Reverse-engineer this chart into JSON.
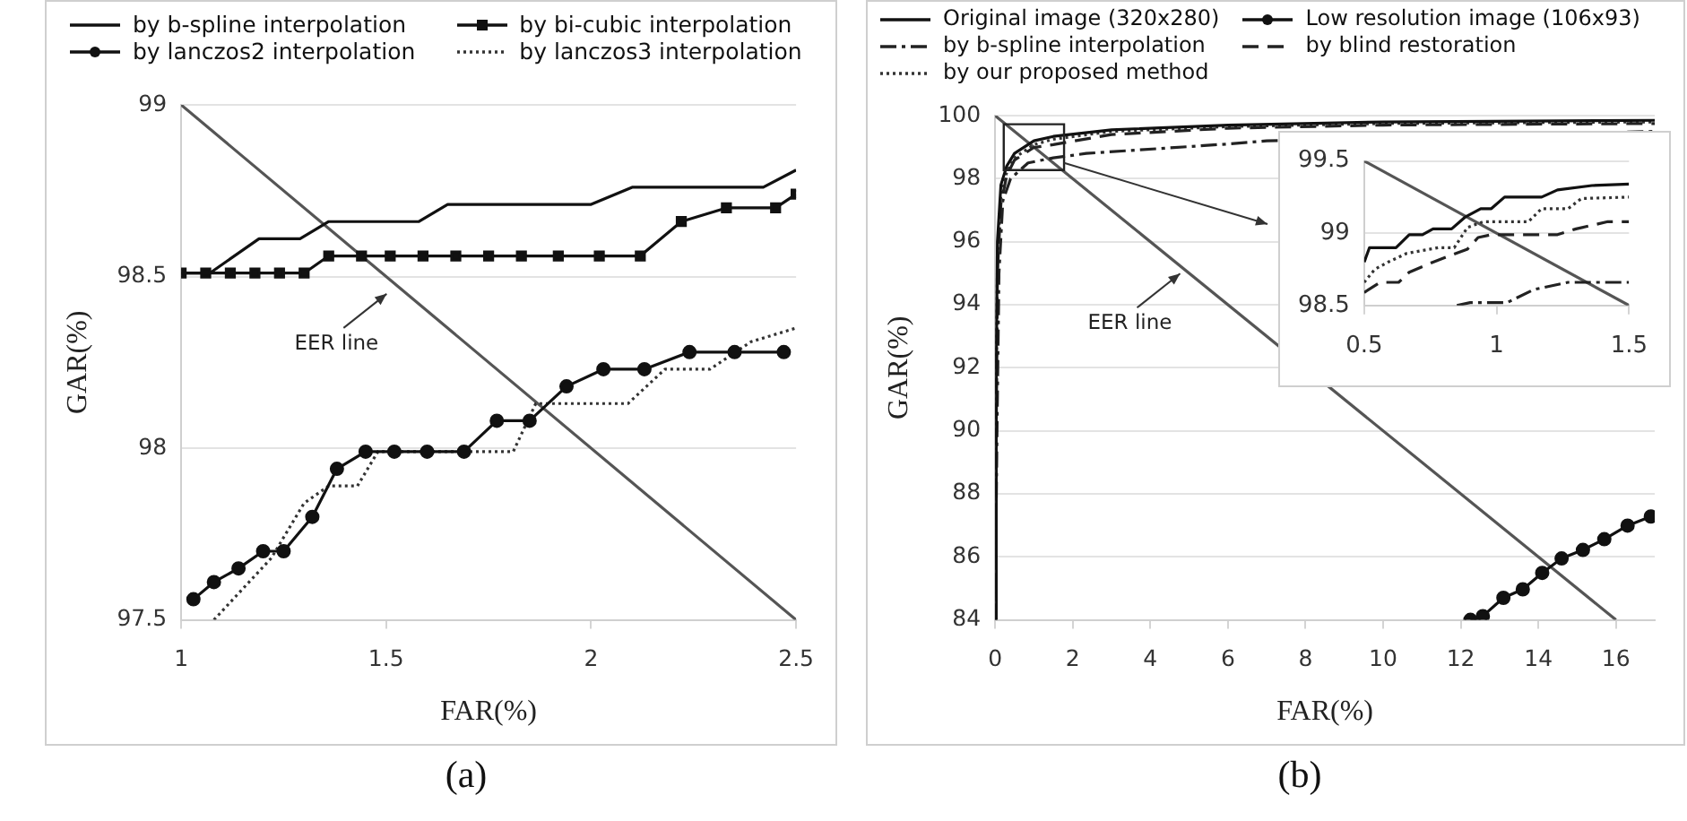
{
  "chart_data": [
    {
      "type": "line",
      "xlabel": "FAR(%)",
      "ylabel": "GAR(%)",
      "xlim": [
        1,
        2.5
      ],
      "xticks": [
        1,
        1.5,
        2,
        2.5
      ],
      "ylim": [
        97.5,
        99
      ],
      "yticks": [
        97.5,
        98,
        98.5,
        99
      ],
      "grid": "y",
      "legend": "top",
      "annotations": [
        {
          "text": "EER line",
          "x": 1.51,
          "y": 98.46
        },
        "(a)"
      ],
      "series": [
        {
          "name": "by b-spline interpolation",
          "color": "#111111",
          "marker": "none",
          "line_style": "solid",
          "x": [
            1,
            1.07,
            1.19,
            1.29,
            1.36,
            1.58,
            1.65,
            2.0,
            2.1,
            2.42,
            2.5
          ],
          "values": [
            98.51,
            98.51,
            98.61,
            98.61,
            98.66,
            98.66,
            98.71,
            98.71,
            98.76,
            98.76,
            98.81
          ]
        },
        {
          "name": "by bi-cubic interpolation",
          "color": "#111111",
          "marker": "square",
          "line_style": "solid",
          "x": [
            1,
            1.06,
            1.12,
            1.18,
            1.24,
            1.3,
            1.36,
            1.44,
            1.51,
            1.59,
            1.67,
            1.75,
            1.83,
            1.92,
            2.02,
            2.12,
            2.22,
            2.33,
            2.45,
            2.5
          ],
          "values": [
            98.51,
            98.51,
            98.51,
            98.51,
            98.51,
            98.51,
            98.56,
            98.56,
            98.56,
            98.56,
            98.56,
            98.56,
            98.56,
            98.56,
            98.56,
            98.56,
            98.66,
            98.7,
            98.7,
            98.74
          ]
        },
        {
          "name": "by lanczos2 interpolation",
          "color": "#111111",
          "marker": "circle",
          "line_style": "solid",
          "x": [
            1.03,
            1.08,
            1.14,
            1.2,
            1.25,
            1.32,
            1.38,
            1.45,
            1.52,
            1.6,
            1.69,
            1.77,
            1.85,
            1.94,
            2.03,
            2.13,
            2.24,
            2.35,
            2.47
          ],
          "values": [
            97.56,
            97.61,
            97.65,
            97.7,
            97.7,
            97.8,
            97.94,
            97.99,
            97.99,
            97.99,
            97.99,
            98.08,
            98.08,
            98.18,
            98.23,
            98.23,
            98.28,
            98.28,
            98.28
          ]
        },
        {
          "name": "by lanczos3 interpolation",
          "color": "#333333",
          "marker": "none",
          "line_style": "dotted",
          "x": [
            1.08,
            1.22,
            1.3,
            1.36,
            1.43,
            1.48,
            1.81,
            1.865,
            2.09,
            2.18,
            2.29,
            2.39,
            2.5
          ],
          "values": [
            97.5,
            97.68,
            97.84,
            97.89,
            97.89,
            97.99,
            97.99,
            98.13,
            98.13,
            98.23,
            98.23,
            98.31,
            98.35
          ]
        },
        {
          "color": "#555555",
          "marker": "none",
          "line_style": "solid",
          "x": [
            1,
            2.5
          ],
          "values": [
            99,
            97.5
          ]
        }
      ]
    },
    {
      "type": "line",
      "xlabel": "FAR(%)",
      "ylabel": "GAR(%)",
      "xlim": [
        0,
        17
      ],
      "xticks": [
        0,
        2,
        4,
        6,
        8,
        10,
        12,
        14,
        16
      ],
      "ylim": [
        84,
        100
      ],
      "yticks": [
        84,
        86,
        88,
        90,
        92,
        94,
        96,
        98,
        100
      ],
      "grid": "y",
      "legend": "top",
      "annotations": [
        {
          "text": "EER line",
          "x": 4.86,
          "y": 95.1
        },
        "(b)"
      ],
      "series": [
        {
          "name": "Original image (320x280)",
          "color": "#111111",
          "marker": "none",
          "line_style": "solid",
          "x": [
            0,
            0.03,
            0.06,
            0.15,
            0.3,
            0.5,
            1,
            1.5,
            3,
            6,
            10,
            17
          ],
          "values": [
            84,
            92,
            96,
            97.8,
            98.4,
            98.8,
            99.2,
            99.34,
            99.55,
            99.7,
            99.8,
            99.85
          ]
        },
        {
          "name": "Low resolution image (106x93)",
          "color": "#111111",
          "marker": "circle",
          "line_style": "solid",
          "x": [
            12.25,
            12.57,
            13.1,
            13.6,
            14.1,
            14.6,
            15.15,
            15.7,
            16.3,
            16.9
          ],
          "values": [
            84,
            84.12,
            84.7,
            84.97,
            85.49,
            85.95,
            86.22,
            86.56,
            86.99,
            87.28
          ]
        },
        {
          "name": "by b-spline interpolation",
          "color": "#222222",
          "marker": "none",
          "line_style": "dashdot",
          "x": [
            0,
            0.05,
            0.1,
            0.2,
            0.4,
            0.85,
            1.5,
            2.35,
            6,
            7,
            17
          ],
          "values": [
            84,
            90,
            95,
            97.3,
            98,
            98.5,
            98.66,
            98.8,
            99.1,
            99.2,
            99.5
          ]
        },
        {
          "name": "by blind restoration",
          "color": "#222222",
          "marker": "none",
          "line_style": "dashed",
          "x": [
            0,
            0.03,
            0.06,
            0.15,
            0.3,
            0.5,
            1,
            1.5,
            3,
            6,
            10,
            17
          ],
          "values": [
            84,
            90,
            95,
            97.2,
            98.1,
            98.59,
            98.99,
            99.08,
            99.4,
            99.6,
            99.7,
            99.75
          ]
        },
        {
          "name": "by our proposed method",
          "color": "#333333",
          "marker": "none",
          "line_style": "dotted",
          "x": [
            0,
            0.03,
            0.06,
            0.15,
            0.3,
            0.5,
            1,
            1.5,
            3,
            6,
            10,
            17
          ],
          "values": [
            84,
            91,
            95.5,
            97.5,
            98.2,
            98.66,
            99.08,
            99.25,
            99.5,
            99.65,
            99.75,
            99.8
          ]
        },
        {
          "color": "#555555",
          "marker": "none",
          "line_style": "solid",
          "x": [
            0,
            16
          ],
          "values": [
            100,
            84
          ]
        }
      ]
    },
    {
      "type": "line",
      "xlim": [
        0.5,
        1.5
      ],
      "xticks": [
        0.5,
        1,
        1.5
      ],
      "ylim": [
        98.5,
        99.5
      ],
      "yticks": [
        98.5,
        99,
        99.5
      ],
      "grid": "y",
      "series": [
        {
          "color": "#111111",
          "marker": "none",
          "line_style": "solid",
          "x": [
            0.5,
            0.52,
            0.62,
            0.67,
            0.72,
            0.76,
            0.83,
            0.88,
            0.94,
            0.98,
            1.03,
            1.17,
            1.23,
            1.36,
            1.5
          ],
          "values": [
            98.8,
            98.9,
            98.9,
            98.99,
            98.99,
            99.03,
            99.03,
            99.11,
            99.17,
            99.17,
            99.25,
            99.25,
            99.3,
            99.33,
            99.34
          ]
        },
        {
          "color": "#222222",
          "marker": "none",
          "line_style": "dashdot",
          "x": [
            0.85,
            0.9,
            1.04,
            1.14,
            1.27,
            1.5
          ],
          "values": [
            98.5,
            98.52,
            98.52,
            98.61,
            98.66,
            98.66
          ]
        },
        {
          "color": "#222222",
          "marker": "none",
          "line_style": "dashed",
          "x": [
            0.5,
            0.56,
            0.63,
            0.67,
            0.76,
            0.89,
            0.93,
            0.98,
            1.23,
            1.3,
            1.42,
            1.5
          ],
          "values": [
            98.59,
            98.66,
            98.66,
            98.73,
            98.8,
            98.89,
            98.97,
            98.99,
            98.99,
            99.03,
            99.08,
            99.08
          ]
        },
        {
          "color": "#333333",
          "marker": "none",
          "line_style": "dotted",
          "x": [
            0.5,
            0.54,
            0.59,
            0.66,
            0.78,
            0.84,
            0.89,
            0.95,
            1.12,
            1.17,
            1.27,
            1.32,
            1.5
          ],
          "values": [
            98.66,
            98.75,
            98.8,
            98.86,
            98.9,
            98.9,
            99.04,
            99.08,
            99.08,
            99.17,
            99.17,
            99.24,
            99.25
          ]
        },
        {
          "color": "#555555",
          "marker": "none",
          "line_style": "solid",
          "x": [
            0.5,
            1.5
          ],
          "values": [
            99.5,
            98.5
          ]
        }
      ]
    }
  ]
}
